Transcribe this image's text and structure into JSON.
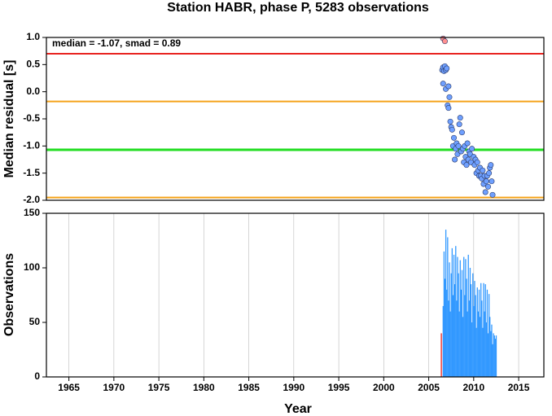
{
  "chart_data": [
    {
      "type": "scatter",
      "title": "Station HABR, phase P, 5283 observations",
      "y_label": "Median residual [s]",
      "annotation": "median = -1.07, smad = 0.89",
      "xlim": [
        1962.5,
        2017.8
      ],
      "ylim": [
        -2.0,
        1.0
      ],
      "yticks": [
        {
          "value": 1,
          "label": "1.0"
        },
        0.5,
        {
          "value": 0,
          "label": "0.0"
        },
        -0.5,
        {
          "value": -1,
          "label": "-1.0"
        },
        -1.5,
        {
          "value": -2,
          "label": "-2.0"
        }
      ],
      "hlines": [
        {
          "value": 0.7,
          "color": "#e8231f"
        },
        {
          "value": -0.18,
          "color": "#f5a31a"
        },
        {
          "value": -1.07,
          "color": "#22dd22"
        },
        {
          "value": -1.95,
          "color": "#f5a31a"
        }
      ],
      "series": [
        {
          "color": "#ff9090",
          "x": [
            2006.6,
            2006.8
          ],
          "values": [
            0.98,
            0.93
          ]
        },
        {
          "color": "#6fa0ff",
          "x": [
            2006.5,
            2006.6,
            2006.7,
            2006.8,
            2006.9,
            2006.6,
            2006.9,
            2007.0,
            2007.1,
            2007.2,
            2007.3,
            2007.2,
            2007.4,
            2007.5,
            2007.6,
            2007.7,
            2007.8,
            2007.9,
            2008.0,
            2008.1,
            2008.2,
            2008.3,
            2008.4,
            2008.5,
            2008.6,
            2008.7,
            2008.8,
            2008.9,
            2009.0,
            2009.1,
            2009.2,
            2009.3,
            2009.4,
            2009.5,
            2009.6,
            2009.7,
            2009.8,
            2010.0,
            2010.1,
            2010.2,
            2010.3,
            2010.4,
            2010.5,
            2010.6,
            2010.7,
            2010.8,
            2010.9,
            2011.0,
            2011.1,
            2011.2,
            2011.3,
            2011.4,
            2011.5,
            2011.6,
            2011.7,
            2011.8,
            2011.9,
            2012.0,
            2012.1
          ],
          "values": [
            0.4,
            0.45,
            0.38,
            0.47,
            0.4,
            0.15,
            0.05,
            0.43,
            -0.25,
            -0.3,
            -0.1,
            0.1,
            -0.55,
            -0.65,
            -0.7,
            -1.0,
            -0.85,
            -1.25,
            -1.05,
            -0.95,
            -1.15,
            -1.0,
            -0.6,
            -0.48,
            -1.1,
            -0.75,
            -1.05,
            -1.3,
            -1.0,
            -1.2,
            -1.35,
            -0.95,
            -1.25,
            -1.1,
            -1.15,
            -1.3,
            -1.05,
            -1.2,
            -1.35,
            -1.25,
            -1.5,
            -1.3,
            -1.45,
            -1.55,
            -1.4,
            -1.55,
            -1.6,
            -1.45,
            -1.7,
            -1.55,
            -1.85,
            -1.65,
            -1.55,
            -1.75,
            -1.5,
            -1.4,
            -1.35,
            -1.65,
            -1.9
          ]
        }
      ]
    },
    {
      "type": "bar",
      "x_label": "Year",
      "y_label": "Observations",
      "xlim": [
        1962.5,
        2017.8
      ],
      "ylim": [
        0,
        150
      ],
      "xticks": [
        1965,
        1970,
        1975,
        1980,
        1985,
        1990,
        1995,
        2000,
        2005,
        2010,
        2015
      ],
      "yticks": [
        0,
        50,
        100,
        150
      ],
      "grid": true,
      "series": [
        {
          "color": "#e8231f",
          "x": [
            2006.4
          ],
          "values": [
            40
          ]
        },
        {
          "color": "#3399ff",
          "x": [
            2006.6,
            2006.7,
            2006.8,
            2006.9,
            2007.0,
            2007.1,
            2007.2,
            2007.3,
            2007.4,
            2007.5,
            2007.6,
            2007.7,
            2007.8,
            2007.9,
            2008.0,
            2008.1,
            2008.2,
            2008.3,
            2008.4,
            2008.5,
            2008.6,
            2008.7,
            2008.8,
            2008.9,
            2009.0,
            2009.1,
            2009.2,
            2009.3,
            2009.4,
            2009.5,
            2009.6,
            2009.7,
            2009.8,
            2009.9,
            2010.0,
            2010.1,
            2010.2,
            2010.3,
            2010.4,
            2010.5,
            2010.6,
            2010.7,
            2010.8,
            2010.9,
            2011.0,
            2011.1,
            2011.2,
            2011.3,
            2011.4,
            2011.5,
            2011.6,
            2011.7,
            2011.8,
            2011.9,
            2012.0,
            2012.1,
            2012.2,
            2012.3,
            2012.4,
            2012.5
          ],
          "values": [
            65,
            115,
            90,
            135,
            80,
            128,
            70,
            105,
            60,
            95,
            118,
            75,
            112,
            85,
            120,
            70,
            110,
            95,
            60,
            107,
            80,
            98,
            55,
            110,
            75,
            108,
            90,
            60,
            112,
            70,
            100,
            85,
            50,
            95,
            65,
            88,
            75,
            45,
            82,
            60,
            80,
            55,
            86,
            70,
            45,
            86,
            60,
            85,
            50,
            80,
            40,
            76,
            55,
            42,
            48,
            30,
            40,
            38,
            35,
            38
          ]
        }
      ]
    }
  ]
}
